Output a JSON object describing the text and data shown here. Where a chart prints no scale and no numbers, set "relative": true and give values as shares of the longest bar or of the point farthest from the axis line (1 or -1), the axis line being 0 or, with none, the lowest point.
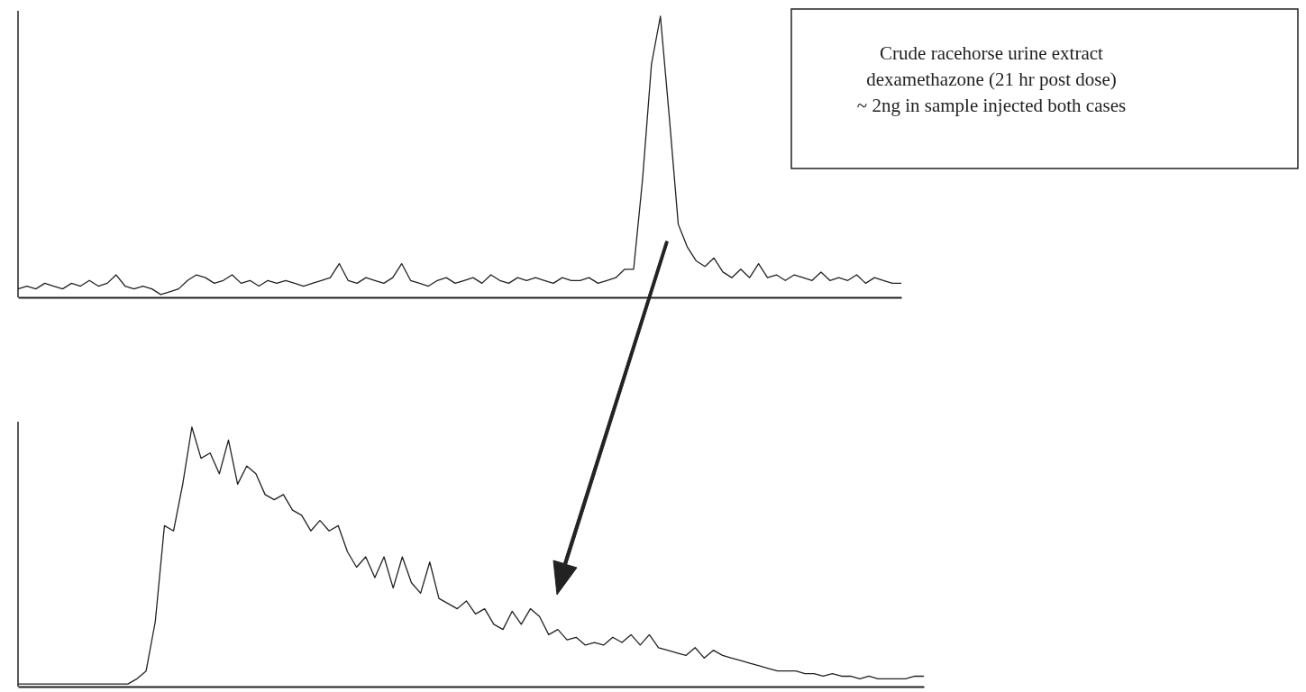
{
  "chart_data": [
    {
      "type": "line",
      "relative": true,
      "annotations": [
        "Crude racehorse urine extract\ndexamethazone (21 hr post dose)\n~ 2ng in sample injected both cases"
      ],
      "categories": [
        null,
        null,
        null,
        null,
        null,
        null,
        null,
        null,
        null,
        null,
        null,
        null,
        null,
        null,
        null,
        null,
        null,
        null,
        null,
        null,
        null,
        null,
        null,
        null,
        null,
        null,
        null,
        null,
        null,
        null,
        null,
        null,
        null,
        null,
        null,
        null,
        null,
        null,
        null,
        null,
        null,
        null,
        null,
        null,
        null,
        null,
        null,
        null,
        null,
        null,
        null,
        null,
        null,
        null,
        null,
        null,
        null,
        null,
        null,
        null,
        null,
        null,
        null,
        null,
        null,
        null,
        null,
        null,
        null,
        null,
        null,
        null,
        null,
        null,
        null,
        null,
        null,
        null,
        null,
        null,
        null,
        null,
        null,
        null,
        null,
        null,
        null,
        null,
        null,
        null,
        null,
        null,
        null,
        null,
        null,
        null,
        null,
        null,
        null,
        null
      ],
      "series": [
        {
          "color": "#222222",
          "values": [
            0.03,
            0.04,
            0.03,
            0.05,
            0.04,
            0.03,
            0.05,
            0.04,
            0.06,
            0.04,
            0.05,
            0.08,
            0.04,
            0.03,
            0.04,
            0.03,
            0.01,
            0.02,
            0.03,
            0.06,
            0.08,
            0.07,
            0.05,
            0.06,
            0.08,
            0.05,
            0.06,
            0.04,
            0.06,
            0.05,
            0.06,
            0.05,
            0.04,
            0.05,
            0.06,
            0.07,
            0.12,
            0.06,
            0.05,
            0.07,
            0.06,
            0.05,
            0.07,
            0.12,
            0.06,
            0.05,
            0.04,
            0.06,
            0.07,
            0.05,
            0.06,
            0.07,
            0.05,
            0.08,
            0.06,
            0.05,
            0.07,
            0.06,
            0.07,
            0.06,
            0.05,
            0.07,
            0.06,
            0.06,
            0.07,
            0.05,
            0.06,
            0.07,
            0.1,
            0.1,
            0.42,
            0.83,
            1.0,
            0.64,
            0.26,
            0.18,
            0.13,
            0.11,
            0.14,
            0.09,
            0.07,
            0.1,
            0.07,
            0.12,
            0.07,
            0.08,
            0.06,
            0.08,
            0.07,
            0.06,
            0.09,
            0.06,
            0.07,
            0.06,
            0.08,
            0.05,
            0.07,
            0.06,
            0.05,
            0.05
          ]
        }
      ]
    },
    {
      "type": "line",
      "relative": true,
      "categories": [
        null,
        null,
        null,
        null,
        null,
        null,
        null,
        null,
        null,
        null,
        null,
        null,
        null,
        null,
        null,
        null,
        null,
        null,
        null,
        null,
        null,
        null,
        null,
        null,
        null,
        null,
        null,
        null,
        null,
        null,
        null,
        null,
        null,
        null,
        null,
        null,
        null,
        null,
        null,
        null,
        null,
        null,
        null,
        null,
        null,
        null,
        null,
        null,
        null,
        null,
        null,
        null,
        null,
        null,
        null,
        null,
        null,
        null,
        null,
        null,
        null,
        null,
        null,
        null,
        null,
        null,
        null,
        null,
        null,
        null,
        null,
        null,
        null,
        null,
        null,
        null,
        null,
        null,
        null,
        null,
        null,
        null,
        null,
        null,
        null,
        null,
        null,
        null,
        null,
        null,
        null,
        null,
        null,
        null,
        null,
        null,
        null,
        null,
        null,
        null
      ],
      "series": [
        {
          "color": "#222222",
          "values": [
            0.01,
            0.01,
            0.01,
            0.01,
            0.01,
            0.01,
            0.01,
            0.01,
            0.01,
            0.01,
            0.01,
            0.01,
            0.01,
            0.03,
            0.06,
            0.25,
            0.62,
            0.6,
            0.78,
            1.0,
            0.88,
            0.9,
            0.82,
            0.95,
            0.78,
            0.85,
            0.82,
            0.74,
            0.72,
            0.74,
            0.68,
            0.66,
            0.6,
            0.64,
            0.6,
            0.62,
            0.52,
            0.46,
            0.5,
            0.42,
            0.5,
            0.38,
            0.5,
            0.4,
            0.36,
            0.48,
            0.34,
            0.32,
            0.3,
            0.33,
            0.28,
            0.3,
            0.24,
            0.22,
            0.29,
            0.24,
            0.3,
            0.27,
            0.2,
            0.22,
            0.18,
            0.19,
            0.16,
            0.17,
            0.16,
            0.19,
            0.17,
            0.2,
            0.16,
            0.2,
            0.15,
            0.14,
            0.13,
            0.12,
            0.15,
            0.11,
            0.14,
            0.12,
            0.11,
            0.1,
            0.09,
            0.08,
            0.07,
            0.06,
            0.06,
            0.06,
            0.05,
            0.05,
            0.04,
            0.05,
            0.04,
            0.04,
            0.03,
            0.04,
            0.03,
            0.03,
            0.03,
            0.03,
            0.04,
            0.04
          ]
        }
      ]
    }
  ]
}
